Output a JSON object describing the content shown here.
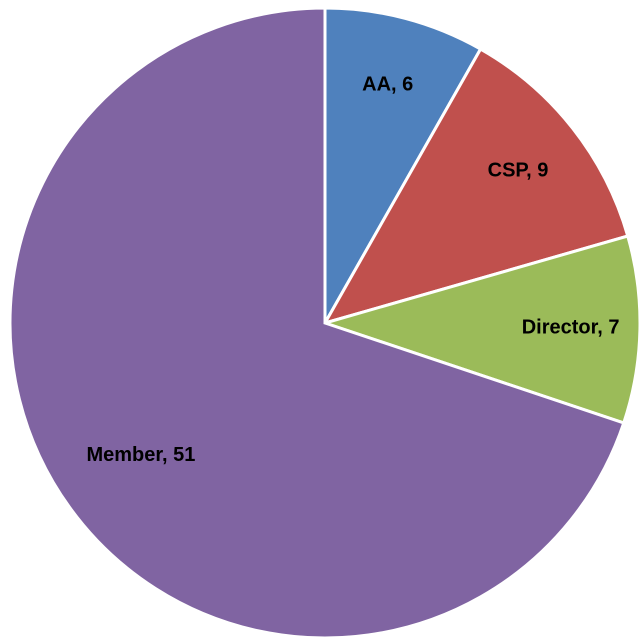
{
  "chart_data": {
    "type": "pie",
    "values": [
      6,
      9,
      7,
      51
    ],
    "value_labels": [
      "AA, 6",
      "CSP, 9",
      "Director, 7",
      "Member, 51"
    ],
    "colors": [
      "#4f81bd",
      "#c0504d",
      "#9bbb59",
      "#8064a2"
    ]
  }
}
